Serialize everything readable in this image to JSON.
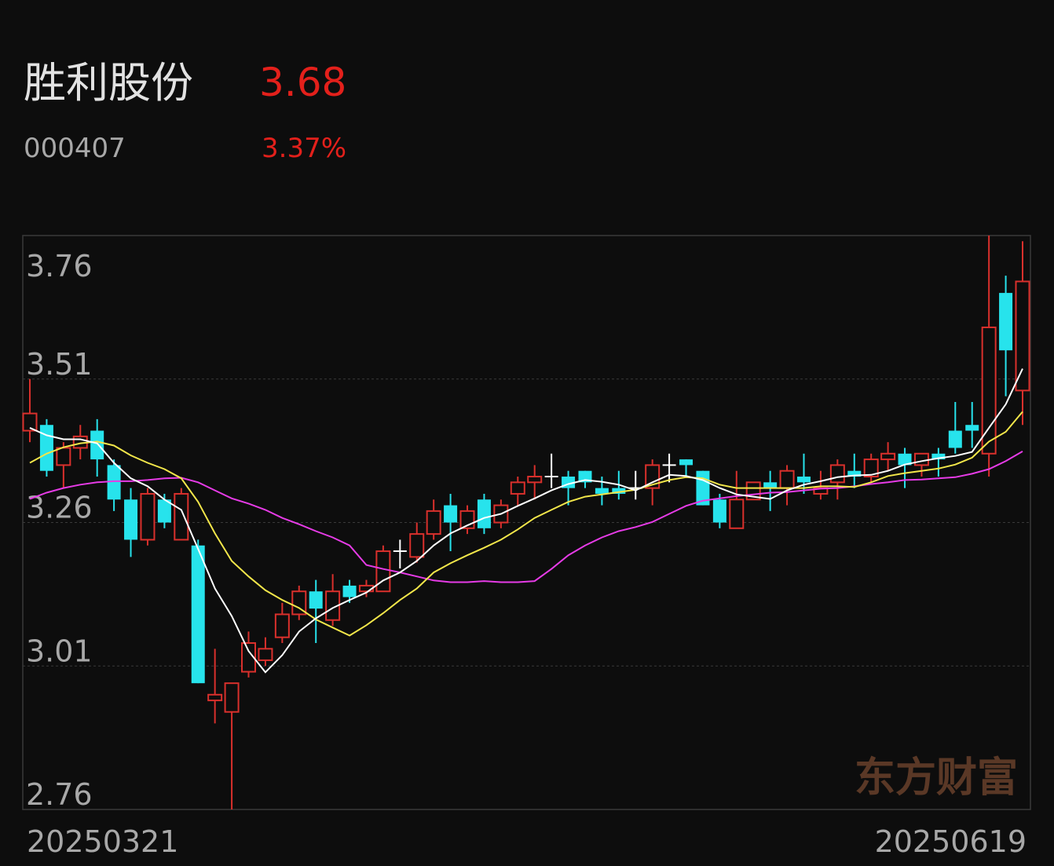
{
  "chart_data": {
    "type": "candlestick",
    "title": "胜利股份",
    "price": 3.68,
    "code": "000407",
    "change": "3.37%",
    "watermark": "东方财富",
    "up_color": "#d9302c",
    "down_color": "#27e3ec",
    "flat_color": "#ffffff",
    "categories": [
      "20250321",
      null,
      null,
      null,
      null,
      null,
      null,
      null,
      null,
      null,
      null,
      null,
      null,
      null,
      null,
      null,
      null,
      null,
      null,
      null,
      null,
      null,
      null,
      null,
      null,
      null,
      null,
      null,
      null,
      null,
      null,
      null,
      null,
      null,
      null,
      null,
      null,
      null,
      null,
      null,
      null,
      null,
      null,
      null,
      null,
      null,
      null,
      null,
      null,
      null,
      null,
      null,
      null,
      null,
      null,
      null,
      null,
      null,
      null,
      "20250619"
    ],
    "open": [
      3.42,
      3.43,
      3.36,
      3.39,
      3.42,
      3.36,
      3.3,
      3.23,
      3.3,
      3.23,
      3.22,
      2.95,
      2.93,
      3.0,
      3.02,
      3.06,
      3.1,
      3.14,
      3.09,
      3.15,
      3.14,
      3.14,
      3.21,
      3.2,
      3.24,
      3.29,
      3.25,
      3.3,
      3.26,
      3.31,
      3.33,
      3.34,
      3.34,
      3.35,
      3.32,
      3.32,
      3.32,
      3.32,
      3.36,
      3.37,
      3.35,
      3.3,
      3.25,
      3.3,
      3.33,
      3.32,
      3.34,
      3.31,
      3.33,
      3.35,
      3.34,
      3.37,
      3.38,
      3.36,
      3.38,
      3.42,
      3.43,
      3.38,
      3.66,
      3.49
    ],
    "high": [
      3.51,
      3.44,
      3.4,
      3.43,
      3.44,
      3.37,
      3.32,
      3.32,
      3.31,
      3.32,
      3.23,
      3.04,
      2.98,
      3.07,
      3.06,
      3.12,
      3.15,
      3.16,
      3.17,
      3.16,
      3.16,
      3.22,
      3.23,
      3.26,
      3.3,
      3.31,
      3.29,
      3.31,
      3.3,
      3.34,
      3.36,
      3.38,
      3.35,
      3.35,
      3.34,
      3.35,
      3.35,
      3.37,
      3.38,
      3.37,
      3.35,
      3.31,
      3.35,
      3.33,
      3.35,
      3.36,
      3.38,
      3.35,
      3.37,
      3.38,
      3.38,
      3.4,
      3.39,
      3.38,
      3.39,
      3.47,
      3.47,
      3.76,
      3.69,
      3.75
    ],
    "low": [
      3.4,
      3.34,
      3.32,
      3.37,
      3.34,
      3.28,
      3.2,
      3.22,
      3.25,
      3.23,
      2.98,
      2.91,
      2.76,
      2.99,
      3.01,
      3.05,
      3.09,
      3.05,
      3.08,
      3.12,
      3.13,
      3.14,
      3.18,
      3.19,
      3.23,
      3.21,
      3.24,
      3.24,
      3.25,
      3.29,
      3.3,
      3.32,
      3.29,
      3.32,
      3.29,
      3.3,
      3.3,
      3.29,
      3.33,
      3.34,
      3.29,
      3.25,
      3.25,
      3.3,
      3.28,
      3.29,
      3.31,
      3.3,
      3.3,
      3.32,
      3.33,
      3.35,
      3.32,
      3.34,
      3.34,
      3.38,
      3.39,
      3.34,
      3.48,
      3.43
    ],
    "close": [
      3.45,
      3.35,
      3.39,
      3.41,
      3.37,
      3.3,
      3.23,
      3.31,
      3.26,
      3.31,
      2.98,
      2.96,
      2.98,
      3.05,
      3.04,
      3.1,
      3.14,
      3.11,
      3.14,
      3.13,
      3.15,
      3.21,
      3.21,
      3.24,
      3.28,
      3.26,
      3.28,
      3.25,
      3.29,
      3.33,
      3.34,
      3.34,
      3.32,
      3.33,
      3.31,
      3.31,
      3.32,
      3.36,
      3.36,
      3.36,
      3.29,
      3.26,
      3.3,
      3.33,
      3.32,
      3.35,
      3.33,
      3.32,
      3.36,
      3.34,
      3.37,
      3.38,
      3.36,
      3.38,
      3.37,
      3.39,
      3.42,
      3.6,
      3.56,
      3.68
    ],
    "series": [
      {
        "color": "#e63be6",
        "values": [
          3.301,
          3.312,
          3.32,
          3.326,
          3.33,
          3.332,
          3.332,
          3.334,
          3.337,
          3.338,
          3.33,
          3.316,
          3.302,
          3.293,
          3.282,
          3.268,
          3.257,
          3.245,
          3.234,
          3.22,
          3.186,
          3.179,
          3.173,
          3.166,
          3.159,
          3.156,
          3.156,
          3.158,
          3.156,
          3.156,
          3.158,
          3.179,
          3.203,
          3.22,
          3.234,
          3.245,
          3.252,
          3.261,
          3.275,
          3.289,
          3.298,
          3.302,
          3.306,
          3.309,
          3.312,
          3.313,
          3.316,
          3.319,
          3.32,
          3.323,
          3.327,
          3.33,
          3.334,
          3.335,
          3.337,
          3.339,
          3.345,
          3.353,
          3.367,
          3.384
        ]
      },
      {
        "color": "#f2e64a",
        "values": [
          3.364,
          3.38,
          3.391,
          3.398,
          3.401,
          3.394,
          3.377,
          3.364,
          3.353,
          3.337,
          3.296,
          3.241,
          3.193,
          3.166,
          3.142,
          3.125,
          3.111,
          3.091,
          3.077,
          3.063,
          3.081,
          3.102,
          3.125,
          3.145,
          3.173,
          3.189,
          3.203,
          3.216,
          3.23,
          3.248,
          3.268,
          3.282,
          3.296,
          3.305,
          3.309,
          3.313,
          3.317,
          3.326,
          3.334,
          3.339,
          3.337,
          3.326,
          3.32,
          3.32,
          3.32,
          3.32,
          3.32,
          3.323,
          3.323,
          3.322,
          3.33,
          3.341,
          3.346,
          3.35,
          3.354,
          3.361,
          3.373,
          3.401,
          3.418,
          3.453
        ]
      },
      {
        "color": "#ffffff",
        "values": [
          3.425,
          3.412,
          3.405,
          3.405,
          3.398,
          3.364,
          3.337,
          3.323,
          3.3,
          3.282,
          3.214,
          3.145,
          3.097,
          3.036,
          2.999,
          3.029,
          3.07,
          3.093,
          3.111,
          3.125,
          3.138,
          3.159,
          3.173,
          3.193,
          3.22,
          3.241,
          3.255,
          3.268,
          3.275,
          3.289,
          3.302,
          3.316,
          3.327,
          3.334,
          3.331,
          3.326,
          3.316,
          3.33,
          3.343,
          3.341,
          3.334,
          3.32,
          3.309,
          3.305,
          3.301,
          3.316,
          3.326,
          3.332,
          3.339,
          3.342,
          3.343,
          3.35,
          3.361,
          3.367,
          3.372,
          3.376,
          3.383,
          3.425,
          3.466,
          3.528
        ]
      }
    ],
    "ylim": [
      2.76,
      3.76
    ],
    "yticks": [
      3.76,
      3.51,
      3.26,
      3.01,
      2.76
    ],
    "grid": true
  }
}
